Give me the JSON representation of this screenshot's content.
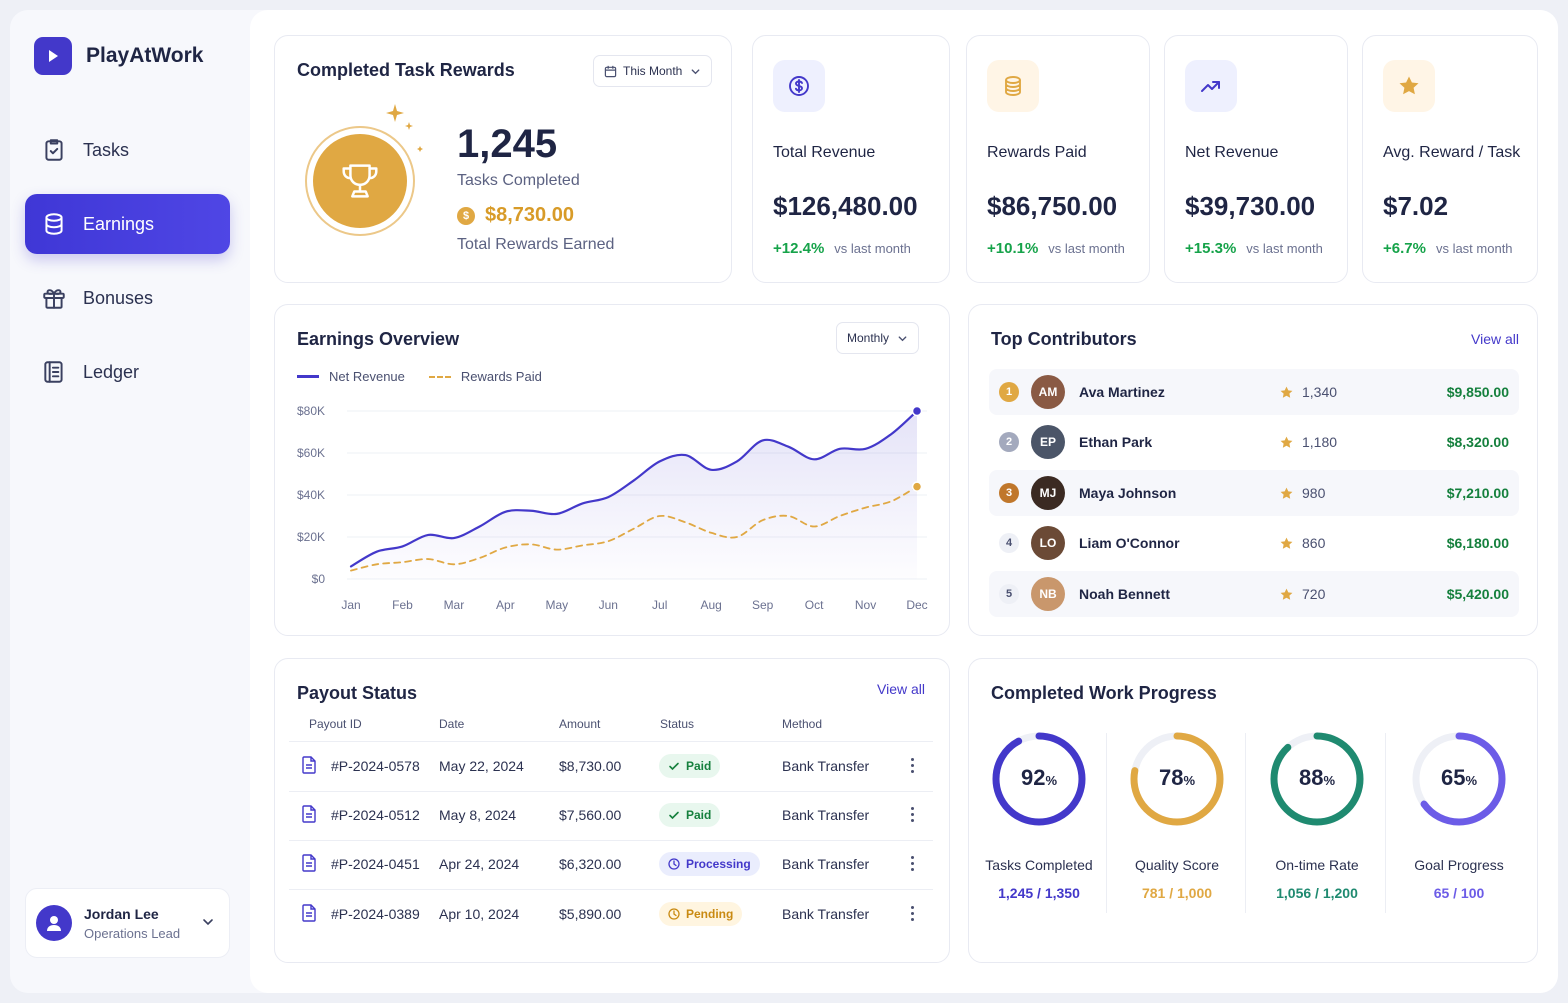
{
  "app": {
    "name": "PlayAtWork"
  },
  "sidebar": {
    "items": [
      {
        "label": "Tasks",
        "icon": "clipboard-check-icon"
      },
      {
        "label": "Earnings",
        "icon": "database-icon",
        "active": true
      },
      {
        "label": "Bonuses",
        "icon": "gift-icon"
      },
      {
        "label": "Ledger",
        "icon": "book-icon"
      }
    ],
    "user": {
      "name": "Jordan Lee",
      "role": "Operations Lead"
    }
  },
  "rewards": {
    "title": "Completed Task Rewards",
    "period": "This Month",
    "count": "1,245",
    "count_label": "Tasks Completed",
    "amount": "$8,730.00",
    "amount_label": "Total Rewards Earned",
    "coin_symbol": "$"
  },
  "kpis": [
    {
      "label": "Total Revenue",
      "value": "$126,480.00",
      "delta": "+12.4%",
      "note": "vs last month",
      "icon": "dollar-circle-icon",
      "color": "#4338ca",
      "bg": "#eef0fe"
    },
    {
      "label": "Rewards Paid",
      "value": "$86,750.00",
      "delta": "+10.1%",
      "note": "vs last month",
      "icon": "coins-icon",
      "color": "#e0a843",
      "bg": "#fff5e6"
    },
    {
      "label": "Net Revenue",
      "value": "$39,730.00",
      "delta": "+15.3%",
      "note": "vs last month",
      "icon": "trend-up-icon",
      "color": "#4338ca",
      "bg": "#eef0fe"
    },
    {
      "label": "Avg. Reward / Task",
      "value": "$7.02",
      "delta": "+6.7%",
      "note": "vs last month",
      "icon": "star-icon",
      "color": "#e0a843",
      "bg": "#fff5e6"
    }
  ],
  "overview": {
    "title": "Earnings Overview",
    "period": "Monthly"
  },
  "chart_data": {
    "type": "line",
    "title": "Earnings Overview",
    "categories": [
      "Jan",
      "Feb",
      "Mar",
      "Apr",
      "May",
      "Jun",
      "Jul",
      "Aug",
      "Sep",
      "Oct",
      "Nov",
      "Dec"
    ],
    "yticks": [
      "$80K",
      "$60K",
      "$40K",
      "$20K",
      "$0"
    ],
    "ylim": [
      0,
      80000
    ],
    "legend_position": "top-left",
    "grid": true,
    "series": [
      {
        "name": "Net Revenue",
        "color": "#4338ca",
        "style": "solid",
        "x": [
          0,
          0.5,
          1,
          1.5,
          2,
          2.5,
          3,
          3.5,
          4,
          4.5,
          5,
          5.5,
          6,
          6.5,
          7,
          7.5,
          8,
          8.5,
          9,
          9.5,
          10,
          10.5,
          11
        ],
        "values": [
          6000,
          13000,
          15500,
          21000,
          19500,
          25000,
          32000,
          32500,
          31000,
          36000,
          39000,
          47000,
          56000,
          59000,
          52000,
          56000,
          66000,
          63000,
          57000,
          62000,
          62000,
          69000,
          80000
        ]
      },
      {
        "name": "Rewards Paid",
        "color": "#e0a843",
        "style": "dashed",
        "x": [
          0,
          0.5,
          1,
          1.5,
          2,
          2.5,
          3,
          3.5,
          4,
          4.5,
          5,
          5.5,
          6,
          6.5,
          7,
          7.5,
          8,
          8.5,
          9,
          9.5,
          10,
          10.5,
          11
        ],
        "values": [
          4000,
          7000,
          8000,
          9500,
          7000,
          10000,
          15000,
          16500,
          14000,
          16000,
          18000,
          24000,
          30000,
          27000,
          22000,
          20000,
          28000,
          30000,
          25000,
          30000,
          34000,
          37000,
          44000
        ]
      }
    ]
  },
  "contributors": {
    "title": "Top Contributors",
    "view_all": "View all",
    "rows": [
      {
        "rank": "1",
        "name": "Ava Martinez",
        "score": "1,340",
        "amount": "$9,850.00",
        "initials": "AM",
        "rank_bg": "#e0a843",
        "avatar_bg": "#8a5a44"
      },
      {
        "rank": "2",
        "name": "Ethan Park",
        "score": "1,180",
        "amount": "$8,320.00",
        "initials": "EP",
        "rank_bg": "#a3a9bd",
        "avatar_bg": "#4b5568"
      },
      {
        "rank": "3",
        "name": "Maya Johnson",
        "score": "980",
        "amount": "$7,210.00",
        "initials": "MJ",
        "rank_bg": "#c0772b",
        "avatar_bg": "#3b2a22"
      },
      {
        "rank": "4",
        "name": "Liam O'Connor",
        "score": "860",
        "amount": "$6,180.00",
        "initials": "LO",
        "rank_bg": "#eef0f6",
        "avatar_bg": "#6b4a36"
      },
      {
        "rank": "5",
        "name": "Noah Bennett",
        "score": "720",
        "amount": "$5,420.00",
        "initials": "NB",
        "rank_bg": "#eef0f6",
        "avatar_bg": "#c9976c"
      }
    ]
  },
  "payouts": {
    "title": "Payout Status",
    "view_all": "View all",
    "headers": [
      "Payout ID",
      "Date",
      "Amount",
      "Status",
      "Method"
    ],
    "rows": [
      {
        "id": "#P-2024-0578",
        "date": "May 22, 2024",
        "amount": "$8,730.00",
        "status": "Paid",
        "method": "Bank Transfer",
        "status_kind": "paid"
      },
      {
        "id": "#P-2024-0512",
        "date": "May 8, 2024",
        "amount": "$7,560.00",
        "status": "Paid",
        "method": "Bank Transfer",
        "status_kind": "paid"
      },
      {
        "id": "#P-2024-0451",
        "date": "Apr 24, 2024",
        "amount": "$6,320.00",
        "status": "Processing",
        "method": "Bank Transfer",
        "status_kind": "processing"
      },
      {
        "id": "#P-2024-0389",
        "date": "Apr 10, 2024",
        "amount": "$5,890.00",
        "status": "Pending",
        "method": "Bank Transfer",
        "status_kind": "pending"
      }
    ]
  },
  "progress": {
    "title": "Completed Work Progress",
    "items": [
      {
        "pct": "92",
        "pct_value": 0.92,
        "unit": "%",
        "label": "Tasks Completed",
        "detail": "1,245 / 1,350",
        "color": "#4338ca"
      },
      {
        "pct": "78",
        "pct_value": 0.78,
        "unit": "%",
        "label": "Quality Score",
        "detail": "781 / 1,000",
        "color": "#e0a843"
      },
      {
        "pct": "88",
        "pct_value": 0.88,
        "unit": "%",
        "label": "On-time Rate",
        "detail": "1,056 / 1,200",
        "color": "#1f8a70"
      },
      {
        "pct": "65",
        "pct_value": 0.65,
        "unit": "%",
        "label": "Goal Progress",
        "detail": "65 / 100",
        "color": "#6c5ce7"
      }
    ]
  }
}
